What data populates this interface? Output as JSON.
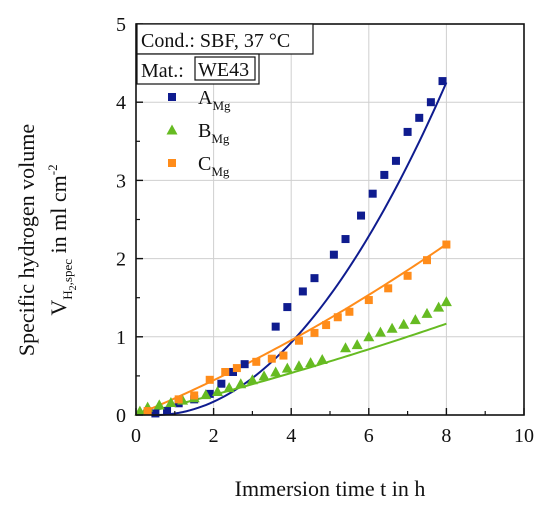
{
  "chart_data": {
    "type": "scatter",
    "xlabel": "Immersion time t in h",
    "ylabel_line1": "Specific hydrogen volume",
    "ylabel_line2": {
      "main": "V",
      "sub": "H",
      "sub_sub": "2",
      "sub_rest": ",spec",
      "units": "in ml cm",
      "exp": "-2"
    },
    "xlim": [
      0,
      10
    ],
    "ylim": [
      0,
      5
    ],
    "xticks": [
      0,
      2,
      4,
      6,
      8,
      10
    ],
    "yticks": [
      0,
      1,
      2,
      3,
      4,
      5
    ],
    "grid": true,
    "legend_position": "top-left",
    "annotations": {
      "cond": "Cond.: SBF, 37 °C",
      "mat_label": "Mat.:",
      "mat_value": "WE43"
    },
    "series": [
      {
        "name": "A",
        "name_sub": "Mg",
        "marker": "square",
        "color": "#0f1c8f",
        "x": [
          0.5,
          0.8,
          1.1,
          1.5,
          1.9,
          2.2,
          2.5,
          2.8,
          3.6,
          3.9,
          4.3,
          4.6,
          5.1,
          5.4,
          5.8,
          6.1,
          6.4,
          6.7,
          7.0,
          7.3,
          7.6,
          7.9
        ],
        "y": [
          0.02,
          0.05,
          0.15,
          0.2,
          0.27,
          0.4,
          0.55,
          0.65,
          1.13,
          1.38,
          1.58,
          1.75,
          2.05,
          2.25,
          2.55,
          2.83,
          3.07,
          3.25,
          3.62,
          3.8,
          4.0,
          4.27
        ],
        "fit": {
          "x0": 0.5,
          "a": 0.0756
        }
      },
      {
        "name": "B",
        "name_sub": "Mg",
        "marker": "triangle",
        "color": "#66bb22",
        "x": [
          0.1,
          0.3,
          0.6,
          0.9,
          1.2,
          1.5,
          1.8,
          2.1,
          2.4,
          2.7,
          3.0,
          3.3,
          3.6,
          3.9,
          4.2,
          4.5,
          4.8,
          5.4,
          5.7,
          6.0,
          6.3,
          6.6,
          6.9,
          7.2,
          7.5,
          7.8,
          8.0
        ],
        "y": [
          0.05,
          0.1,
          0.13,
          0.16,
          0.19,
          0.22,
          0.26,
          0.3,
          0.35,
          0.4,
          0.45,
          0.5,
          0.55,
          0.6,
          0.63,
          0.67,
          0.71,
          0.86,
          0.9,
          1.0,
          1.06,
          1.11,
          1.16,
          1.22,
          1.3,
          1.38,
          1.45
        ],
        "fit": {
          "a": 0.1227,
          "b": 0.0029
        }
      },
      {
        "name": "C",
        "name_sub": "Mg",
        "marker": "square",
        "color": "#ff8c1a",
        "x": [
          0.3,
          1.1,
          1.5,
          1.9,
          2.3,
          2.6,
          3.1,
          3.5,
          3.8,
          4.2,
          4.6,
          4.9,
          5.2,
          5.5,
          6.0,
          6.5,
          7.0,
          7.5,
          8.0
        ],
        "y": [
          0.05,
          0.2,
          0.25,
          0.45,
          0.55,
          0.6,
          0.68,
          0.72,
          0.76,
          0.95,
          1.05,
          1.15,
          1.25,
          1.32,
          1.47,
          1.62,
          1.78,
          1.98,
          2.18
        ],
        "fit": {
          "a": 0.205,
          "b": 0.0085
        }
      }
    ]
  }
}
